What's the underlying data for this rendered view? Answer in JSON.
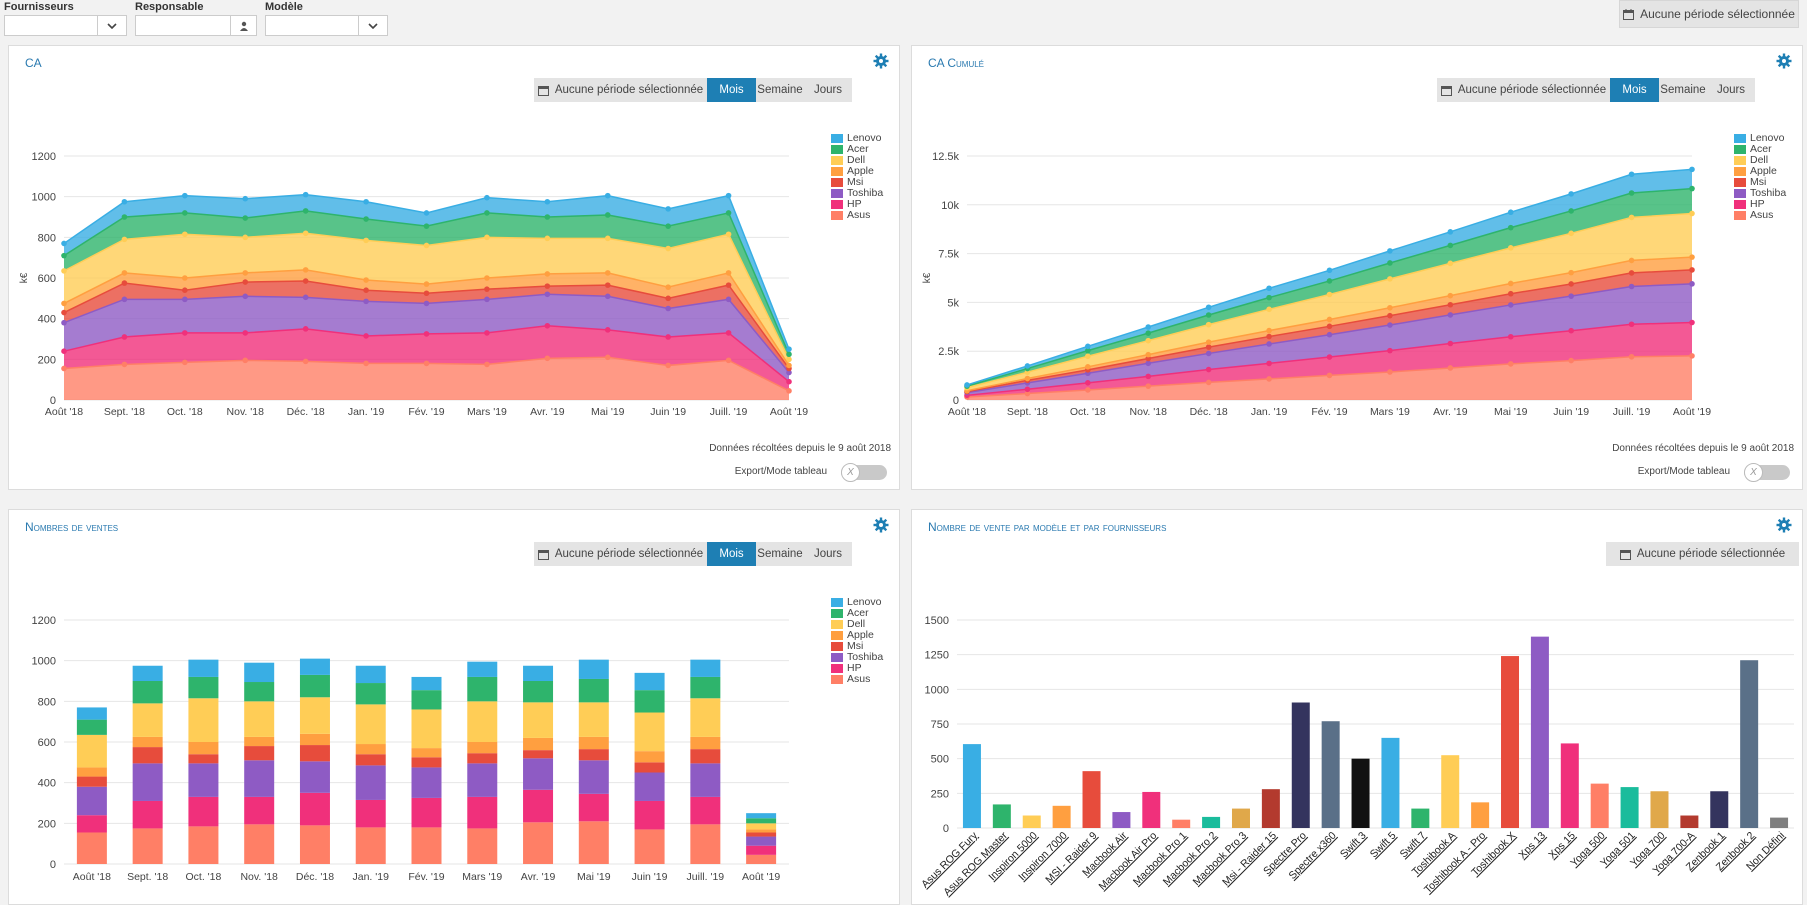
{
  "filters": {
    "fournisseurs_label": "Fournisseurs",
    "responsable_label": "Responsable",
    "modele_label": "Modèle",
    "fournisseurs_value": "",
    "responsable_value": "",
    "modele_value": ""
  },
  "period_label": "Aucune période sélectionnée",
  "group_buttons": {
    "mois": "Mois",
    "semaine": "Semaine",
    "jours": "Jours"
  },
  "footnote": "Données récoltées depuis le 9 août 2018",
  "export_label": "Export/Mode tableau",
  "toggle_glyph": "X",
  "colors": {
    "accent": "#1e7fb4",
    "Lenovo": "#39aee4",
    "Acer": "#2eb46c",
    "Dell": "#ffcd56",
    "Apple": "#ff9f40",
    "Msi": "#e74c3c",
    "Toshiba": "#8e5bc4",
    "HP": "#f0307b",
    "Asus": "#ff7f66"
  },
  "panels": {
    "ca": {
      "title": "CA"
    },
    "ca_cumule": {
      "title": "CA Cumulé"
    },
    "nb_ventes": {
      "title": "Nombres de ventes"
    },
    "nb_modele": {
      "title": "Nombre de vente par modèle et par fournisseurs"
    }
  },
  "chart_data": [
    {
      "id": "ca",
      "type": "area",
      "stacked": true,
      "ylabel": "k€",
      "ylim": [
        0,
        1200
      ],
      "yticks": [
        0,
        200,
        400,
        600,
        800,
        1000,
        1200
      ],
      "categories": [
        "Août '18",
        "Sept. '18",
        "Oct. '18",
        "Nov. '18",
        "Déc. '18",
        "Janv. '19",
        "Févr. '19",
        "Mars '19",
        "Avr. '19",
        "Mai '19",
        "Juin '19",
        "Juill. '19",
        "Août '19"
      ],
      "xticks": [
        "Août '18",
        "Sept. '18",
        "Oct. '18",
        "Nov. '18",
        "Déc. '18",
        "Jan. '19",
        "Fév. '19",
        "Mars '19",
        "Avr. '19",
        "Mai '19",
        "Juin '19",
        "Juill. '19",
        "Août '19"
      ],
      "legend_position": "right",
      "series": [
        {
          "name": "Asus",
          "values": [
            155,
            175,
            185,
            195,
            190,
            180,
            180,
            175,
            205,
            210,
            170,
            195,
            45
          ]
        },
        {
          "name": "HP",
          "values": [
            85,
            135,
            145,
            135,
            160,
            135,
            145,
            155,
            160,
            135,
            140,
            135,
            45
          ]
        },
        {
          "name": "Toshiba",
          "values": [
            140,
            185,
            165,
            180,
            155,
            170,
            150,
            165,
            155,
            165,
            140,
            165,
            45
          ]
        },
        {
          "name": "Msi",
          "values": [
            50,
            80,
            45,
            70,
            80,
            55,
            50,
            50,
            40,
            55,
            50,
            70,
            20
          ]
        },
        {
          "name": "Apple",
          "values": [
            45,
            50,
            60,
            45,
            55,
            50,
            45,
            55,
            60,
            60,
            55,
            60,
            15
          ]
        },
        {
          "name": "Dell",
          "values": [
            160,
            165,
            215,
            175,
            180,
            195,
            190,
            200,
            175,
            170,
            190,
            190,
            30
          ]
        },
        {
          "name": "Acer",
          "values": [
            75,
            110,
            105,
            95,
            110,
            105,
            95,
            120,
            105,
            115,
            110,
            105,
            25
          ]
        },
        {
          "name": "Lenovo",
          "values": [
            60,
            75,
            85,
            95,
            80,
            85,
            65,
            75,
            75,
            95,
            85,
            85,
            25
          ]
        }
      ]
    },
    {
      "id": "ca_cumule",
      "type": "area",
      "stacked": true,
      "ylabel": "k€",
      "ylim": [
        0,
        12500
      ],
      "yticks": [
        0,
        2500,
        5000,
        7500,
        10000,
        12500
      ],
      "ytick_labels": [
        "0",
        "2.5k",
        "5k",
        "7.5k",
        "10k",
        "12.5k"
      ],
      "categories": [
        "Août '18",
        "Sept. '18",
        "Oct. '18",
        "Nov. '18",
        "Déc. '18",
        "Janv. '19",
        "Févr. '19",
        "Mars '19",
        "Avr. '19",
        "Mai '19",
        "Juin '19",
        "Juill. '19",
        "Août '19"
      ],
      "xticks": [
        "Août '18",
        "Sept. '18",
        "Oct. '18",
        "Nov. '18",
        "Déc. '18",
        "Jan. '19",
        "Fév. '19",
        "Mars '19",
        "Avr. '19",
        "Mai '19",
        "Juin '19",
        "Juill. '19",
        "Août '19"
      ],
      "legend_position": "right",
      "series": [
        {
          "name": "Asus",
          "values": [
            155,
            330,
            515,
            710,
            900,
            1080,
            1260,
            1435,
            1640,
            1850,
            2020,
            2215,
            2260
          ]
        },
        {
          "name": "HP",
          "values": [
            85,
            220,
            365,
            500,
            660,
            795,
            940,
            1095,
            1255,
            1390,
            1530,
            1665,
            1710
          ]
        },
        {
          "name": "Toshiba",
          "values": [
            140,
            325,
            490,
            670,
            825,
            995,
            1145,
            1310,
            1465,
            1630,
            1770,
            1935,
            1980
          ]
        },
        {
          "name": "Msi",
          "values": [
            50,
            130,
            175,
            245,
            325,
            380,
            430,
            480,
            520,
            575,
            625,
            695,
            715
          ]
        },
        {
          "name": "Apple",
          "values": [
            45,
            95,
            155,
            200,
            255,
            305,
            350,
            405,
            465,
            525,
            580,
            640,
            655
          ]
        },
        {
          "name": "Dell",
          "values": [
            160,
            325,
            540,
            715,
            895,
            1090,
            1280,
            1480,
            1655,
            1825,
            2015,
            2205,
            2235
          ]
        },
        {
          "name": "Acer",
          "values": [
            75,
            185,
            290,
            385,
            495,
            600,
            695,
            815,
            920,
            1035,
            1145,
            1250,
            1275
          ]
        },
        {
          "name": "Lenovo",
          "values": [
            60,
            135,
            220,
            315,
            395,
            480,
            545,
            620,
            695,
            790,
            875,
            960,
            985
          ]
        }
      ]
    },
    {
      "id": "nb_ventes",
      "type": "bar",
      "stacked": true,
      "ylim": [
        0,
        1200
      ],
      "yticks": [
        0,
        200,
        400,
        600,
        800,
        1000,
        1200
      ],
      "categories": [
        "Août '18",
        "Sept. '18",
        "Oct. '18",
        "Nov. '18",
        "Déc. '18",
        "Jan. '19",
        "Fév. '19",
        "Mars '19",
        "Avr. '19",
        "Mai '19",
        "Juin '19",
        "Juill. '19",
        "Août '19"
      ],
      "legend_position": "right",
      "series": [
        {
          "name": "Asus",
          "values": [
            155,
            175,
            185,
            195,
            190,
            180,
            180,
            175,
            205,
            210,
            170,
            195,
            45
          ]
        },
        {
          "name": "HP",
          "values": [
            85,
            135,
            145,
            135,
            160,
            135,
            145,
            155,
            160,
            135,
            140,
            135,
            45
          ]
        },
        {
          "name": "Toshiba",
          "values": [
            140,
            185,
            165,
            180,
            155,
            170,
            150,
            165,
            155,
            165,
            140,
            165,
            45
          ]
        },
        {
          "name": "Msi",
          "values": [
            50,
            80,
            45,
            70,
            80,
            55,
            50,
            50,
            40,
            55,
            50,
            70,
            20
          ]
        },
        {
          "name": "Apple",
          "values": [
            45,
            50,
            60,
            45,
            55,
            50,
            45,
            55,
            60,
            60,
            55,
            60,
            15
          ]
        },
        {
          "name": "Dell",
          "values": [
            160,
            165,
            215,
            175,
            180,
            195,
            190,
            200,
            175,
            170,
            190,
            190,
            30
          ]
        },
        {
          "name": "Acer",
          "values": [
            75,
            110,
            105,
            95,
            110,
            105,
            95,
            120,
            105,
            115,
            110,
            105,
            25
          ]
        },
        {
          "name": "Lenovo",
          "values": [
            60,
            75,
            85,
            95,
            80,
            85,
            65,
            75,
            75,
            95,
            85,
            85,
            25
          ]
        }
      ]
    },
    {
      "id": "nb_modele",
      "type": "bar",
      "ylim": [
        0,
        1500
      ],
      "yticks": [
        0,
        250,
        500,
        750,
        1000,
        1250,
        1500
      ],
      "categories": [
        "Asus ROG Fury",
        "Asus ROG Master",
        "Inspiron 5000",
        "Inspiron 7000",
        "MSI - Raider 9",
        "Macbook Air",
        "Macbook Air Pro",
        "Macbook Pro 1",
        "Macbook Pro 2",
        "Macbook Pro 3",
        "Msi - Raider 15",
        "Spectre Pro",
        "Spectre x360",
        "Swift 3",
        "Swift 5",
        "Swift 7",
        "Toshibook A",
        "Toshibook A - Pro",
        "Toshibook X",
        "Xps 13",
        "Xps 15",
        "Yoga 500",
        "Yoga 501",
        "Yoga 700",
        "Yoga 700-A",
        "Zenbook 1",
        "Zenbook 2",
        "Non Défini"
      ],
      "values": [
        605,
        170,
        90,
        160,
        410,
        115,
        260,
        60,
        80,
        140,
        280,
        905,
        770,
        500,
        650,
        140,
        525,
        185,
        1240,
        1380,
        610,
        320,
        295,
        265,
        90,
        265,
        1210,
        75
      ],
      "bar_colors": [
        "#39aee4",
        "#2eb46c",
        "#ffcd56",
        "#ff9f40",
        "#e74c3c",
        "#8e5bc4",
        "#f0307b",
        "#ff7f66",
        "#1abc9c",
        "#e0a84a",
        "#b33a2e",
        "#34345e",
        "#5a7088",
        "#111111",
        "#39aee4",
        "#2eb46c",
        "#ffcd56",
        "#ff9f40",
        "#e74c3c",
        "#8e5bc4",
        "#f0307b",
        "#ff7f66",
        "#1abc9c",
        "#e0a84a",
        "#b33a2e",
        "#34345e",
        "#5a7088",
        "#7f7f7f"
      ]
    }
  ]
}
